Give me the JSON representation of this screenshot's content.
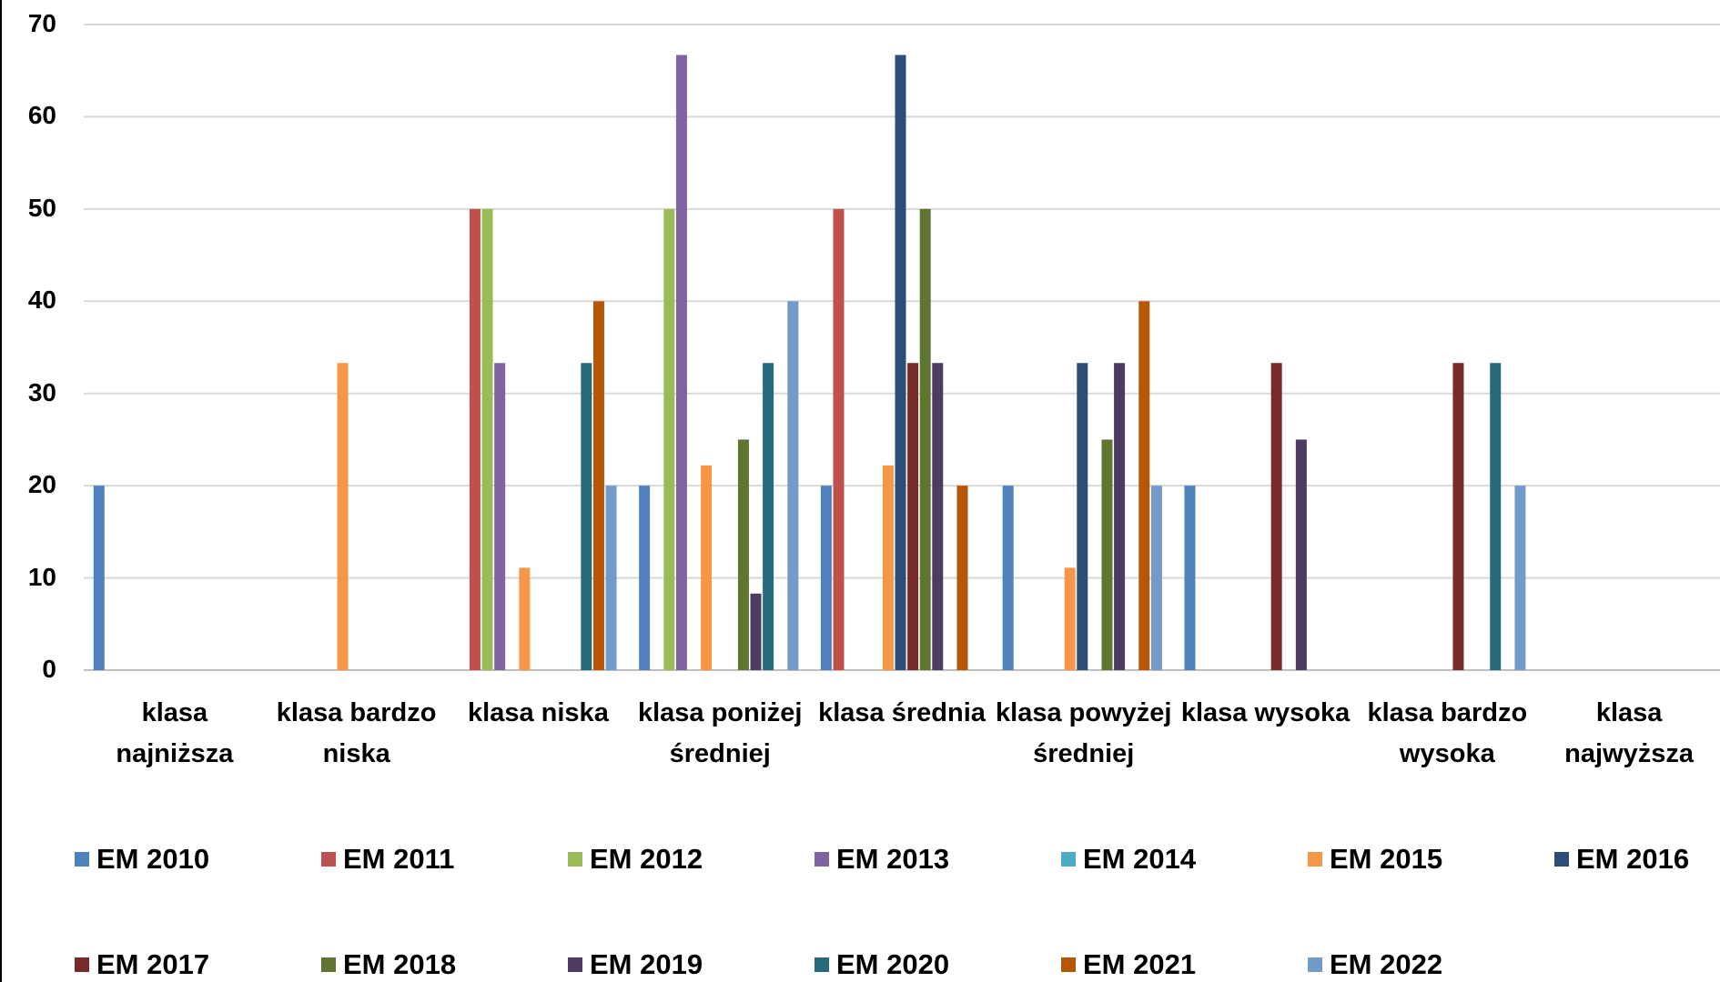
{
  "chart_data": {
    "type": "bar",
    "categories": [
      "klasa najniższa",
      "klasa bardzo niska",
      "klasa niska",
      "klasa poniżej średniej",
      "klasa średnia",
      "klasa powyżej średniej",
      "klasa wysoka",
      "klasa bardzo wysoka",
      "klasa najwyższa"
    ],
    "series": [
      {
        "name": "EM 2010",
        "color": "#4f81bd",
        "values": [
          20,
          0,
          0,
          20,
          20,
          20,
          20,
          0,
          0
        ]
      },
      {
        "name": "EM 2011",
        "color": "#c0504d",
        "values": [
          0,
          0,
          50,
          0,
          50,
          0,
          0,
          0,
          0
        ]
      },
      {
        "name": "EM 2012",
        "color": "#9bbb59",
        "values": [
          0,
          0,
          50,
          50,
          0,
          0,
          0,
          0,
          0
        ]
      },
      {
        "name": "EM 2013",
        "color": "#8064a2",
        "values": [
          0,
          0,
          33.3,
          66.7,
          0,
          0,
          0,
          0,
          0
        ]
      },
      {
        "name": "EM 2014",
        "color": "#4bacc6",
        "values": [
          0,
          0,
          0,
          0,
          0,
          0,
          0,
          0,
          0
        ]
      },
      {
        "name": "EM 2015",
        "color": "#f79646",
        "values": [
          0,
          33.3,
          11.1,
          22.2,
          22.2,
          11.1,
          0,
          0,
          0
        ]
      },
      {
        "name": "EM 2016",
        "color": "#2c4d75",
        "values": [
          0,
          0,
          0,
          0,
          66.7,
          33.3,
          0,
          0,
          0
        ]
      },
      {
        "name": "EM 2017",
        "color": "#772c2a",
        "values": [
          0,
          0,
          0,
          0,
          33.3,
          0,
          33.3,
          33.3,
          0
        ]
      },
      {
        "name": "EM 2018",
        "color": "#5f7530",
        "values": [
          0,
          0,
          0,
          25,
          50,
          25,
          0,
          0,
          0
        ]
      },
      {
        "name": "EM 2019",
        "color": "#4d3b62",
        "values": [
          0,
          0,
          0,
          8.3,
          33.3,
          33.3,
          25,
          0,
          0
        ]
      },
      {
        "name": "EM 2020",
        "color": "#276a7c",
        "values": [
          0,
          0,
          33.3,
          33.3,
          0,
          0,
          0,
          33.3,
          0
        ]
      },
      {
        "name": "EM 2021",
        "color": "#b65708",
        "values": [
          0,
          0,
          40,
          0,
          20,
          40,
          0,
          0,
          0
        ]
      },
      {
        "name": "EM 2022",
        "color": "#729aca",
        "values": [
          0,
          0,
          20,
          40,
          0,
          20,
          0,
          20,
          0
        ]
      }
    ],
    "ylim": [
      0,
      70
    ],
    "yticks": [
      0,
      10,
      20,
      30,
      40,
      50,
      60,
      70
    ],
    "grid": true
  }
}
